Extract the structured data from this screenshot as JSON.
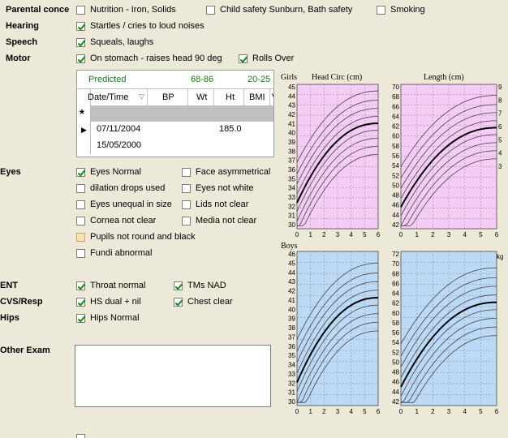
{
  "rows": {
    "parental": {
      "label": "Parental conce",
      "items": [
        {
          "label": "Nutrition - Iron, Solids",
          "checked": false
        },
        {
          "label": "Child safety Sunburn, Bath safety",
          "checked": false
        },
        {
          "label": "Smoking",
          "checked": false
        }
      ]
    },
    "hearing": {
      "label": "Hearing",
      "items": [
        {
          "label": "Startles / cries to loud noises",
          "checked": true
        }
      ]
    },
    "speech": {
      "label": "Speech",
      "items": [
        {
          "label": "Squeals, laughs",
          "checked": true
        }
      ]
    },
    "motor": {
      "label": "Motor",
      "items": [
        {
          "label": "On stomach - raises head 90 deg",
          "checked": true
        },
        {
          "label": "Rolls Over",
          "checked": true
        }
      ]
    },
    "eyes": {
      "label": "Eyes",
      "items": [
        {
          "label": "Eyes Normal",
          "checked": true
        },
        {
          "label": "Face asymmetrical",
          "checked": false
        },
        {
          "label": "dilation drops used",
          "checked": false
        },
        {
          "label": "Eyes not white",
          "checked": false
        },
        {
          "label": "Eyes unequal in size",
          "checked": false
        },
        {
          "label": "Lids not clear",
          "checked": false
        },
        {
          "label": "Cornea not clear",
          "checked": false
        },
        {
          "label": "Media not clear",
          "checked": false
        },
        {
          "label": "Pupils not round and black",
          "checked": false
        },
        {
          "label": "Fundi abnormal",
          "checked": false
        }
      ]
    },
    "ent": {
      "label": "ENT",
      "items": [
        {
          "label": "Throat normal",
          "checked": true
        },
        {
          "label": "TMs NAD",
          "checked": true
        }
      ]
    },
    "cvs": {
      "label": "CVS/Resp",
      "items": [
        {
          "label": "HS dual + nil",
          "checked": true
        },
        {
          "label": "Chest clear",
          "checked": true
        }
      ]
    },
    "hips": {
      "label": "Hips",
      "items": [
        {
          "label": "Hips Normal",
          "checked": true
        }
      ]
    },
    "other": {
      "label": "Other Exam",
      "value": ""
    }
  },
  "grid": {
    "predicted_label": "Predicted",
    "predicted_ht": "68-86",
    "predicted_bmi": "20-25",
    "columns": [
      "Date/Time",
      "BP",
      "Wt",
      "Ht",
      "BMI",
      "V"
    ],
    "new_row_marker": "*",
    "rows": [
      {
        "date": "07/11/2004",
        "bp": "",
        "wt": "",
        "ht": "185.0",
        "bmi": ""
      },
      {
        "date": "15/05/2000",
        "bp": "",
        "wt": "",
        "ht": "",
        "bmi": ""
      }
    ]
  },
  "charts": {
    "girls_label": "Girls",
    "boys_label": "Boys",
    "head_title": "Head Circ (cm)",
    "length_title": "Length (cm)",
    "kg_label": "kg",
    "head_ticks_girls": [
      "45",
      "44",
      "43",
      "42",
      "41",
      "40",
      "39",
      "38",
      "37",
      "36",
      "35",
      "34",
      "33",
      "32",
      "31",
      "30"
    ],
    "length_ticks_girls": [
      "70",
      "68",
      "66",
      "64",
      "62",
      "60",
      "58",
      "56",
      "54",
      "52",
      "50",
      "48",
      "46",
      "44",
      "42"
    ],
    "weight_ticks_girls": [
      "9",
      "8",
      "7",
      "6",
      "5",
      "4",
      "3"
    ],
    "head_ticks_boys": [
      "46",
      "45",
      "44",
      "43",
      "42",
      "41",
      "40",
      "39",
      "38",
      "37",
      "36",
      "35",
      "34",
      "33",
      "32",
      "31",
      "30"
    ],
    "length_ticks_boys": [
      "72",
      "70",
      "68",
      "66",
      "64",
      "62",
      "60",
      "58",
      "56",
      "54",
      "52",
      "50",
      "48",
      "46",
      "44",
      "42"
    ],
    "x_ticks": [
      "0",
      "1",
      "2",
      "3",
      "4",
      "5",
      "6"
    ],
    "colors": {
      "girls_bg": "#f5ccf5",
      "boys_bg": "#bcd9f5",
      "axis_bg": "#ece9d8"
    }
  }
}
